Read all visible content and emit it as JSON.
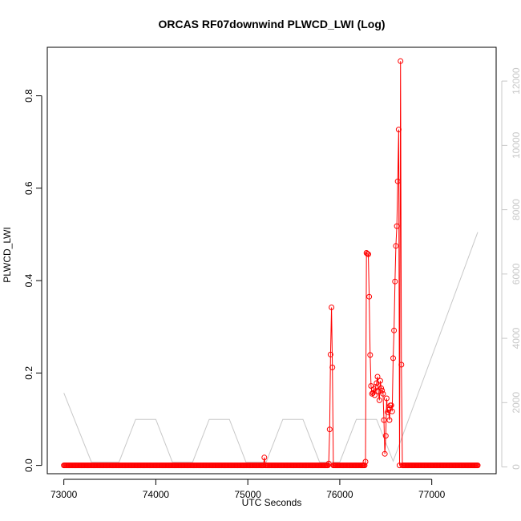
{
  "chart_data": {
    "type": "line",
    "title": "ORCAS RF07downwind PLWCD_LWI (Log)",
    "xlabel": "UTC Seconds",
    "ylabel": "PLWCD_LWI",
    "xlim": [
      72820,
      77700
    ],
    "ylim": [
      -0.018,
      0.905
    ],
    "y2lim": [
      -210,
      13050
    ],
    "x_ticks": [
      "73000",
      "74000",
      "75000",
      "76000",
      "77000"
    ],
    "y_ticks": [
      "0.0",
      "0.2",
      "0.4",
      "0.6",
      "0.8"
    ],
    "y2_ticks": [
      "0",
      "2000",
      "4000",
      "6000",
      "8000",
      "10000",
      "12000"
    ],
    "colors": {
      "primary": "#ff0000",
      "secondary": "#c8c8c8"
    },
    "series": [
      {
        "color": "#ff0000",
        "style": "line+circle",
        "axis": "left",
        "baseline": {
          "x_start": 73000,
          "x_end": 77500,
          "step": 10,
          "y": 0.0
        },
        "points": [
          [
            75180,
            0.017
          ],
          [
            75880,
            0.004
          ],
          [
            75890,
            0.078
          ],
          [
            75900,
            0.24
          ],
          [
            75910,
            0.342
          ],
          [
            75920,
            0.212
          ],
          [
            75930,
            0.0
          ],
          [
            76280,
            0.008
          ],
          [
            76290,
            0.46
          ],
          [
            76300,
            0.458
          ],
          [
            76310,
            0.457
          ],
          [
            76320,
            0.365
          ],
          [
            76330,
            0.239
          ],
          [
            76340,
            0.172
          ],
          [
            76350,
            0.155
          ],
          [
            76360,
            0.157
          ],
          [
            76370,
            0.165
          ],
          [
            76380,
            0.152
          ],
          [
            76390,
            0.17
          ],
          [
            76400,
            0.178
          ],
          [
            76410,
            0.192
          ],
          [
            76420,
            0.16
          ],
          [
            76430,
            0.141
          ],
          [
            76440,
            0.183
          ],
          [
            76450,
            0.167
          ],
          [
            76460,
            0.162
          ],
          [
            76470,
            0.155
          ],
          [
            76480,
            0.098
          ],
          [
            76490,
            0.025
          ],
          [
            76500,
            0.064
          ],
          [
            76510,
            0.145
          ],
          [
            76520,
            0.115
          ],
          [
            76530,
            0.12
          ],
          [
            76540,
            0.098
          ],
          [
            76550,
            0.13
          ],
          [
            76560,
            0.13
          ],
          [
            76570,
            0.117
          ],
          [
            76580,
            0.232
          ],
          [
            76590,
            0.292
          ],
          [
            76600,
            0.398
          ],
          [
            76610,
            0.475
          ],
          [
            76620,
            0.518
          ],
          [
            76630,
            0.615
          ],
          [
            76640,
            0.727
          ],
          [
            76660,
            0.875
          ],
          [
            76670,
            0.218
          ],
          [
            76680,
            0.0
          ]
        ]
      },
      {
        "color": "#c8c8c8",
        "style": "line",
        "axis": "right",
        "x": [
          73000,
          73300,
          73600,
          73780,
          74000,
          74180,
          74400,
          74580,
          74800,
          74980,
          75200,
          75380,
          75600,
          75780,
          76000,
          76180,
          76400,
          76580,
          77500
        ],
        "y": [
          2300,
          150,
          150,
          1480,
          1480,
          150,
          150,
          1480,
          1480,
          150,
          150,
          1480,
          1480,
          150,
          150,
          1480,
          1480,
          180,
          7300
        ]
      }
    ]
  }
}
